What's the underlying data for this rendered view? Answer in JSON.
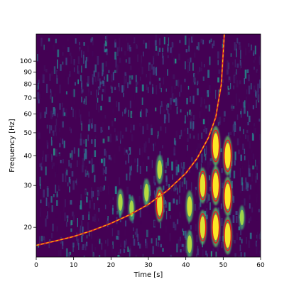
{
  "chart_data": {
    "type": "heatmap",
    "title": "",
    "xlabel": "Time [s]",
    "ylabel": "Frequency [Hz]",
    "xlim": [
      0,
      60
    ],
    "ylim": [
      15,
      130
    ],
    "yscale": "log",
    "colormap": "viridis",
    "grid": false,
    "x_ticks": [
      0,
      10,
      20,
      30,
      40,
      50,
      60
    ],
    "x_tick_labels": [
      "0",
      "10",
      "20",
      "30",
      "40",
      "50",
      "60"
    ],
    "y_ticks": [
      20,
      30,
      40,
      50,
      60,
      70,
      80,
      90,
      100
    ],
    "y_tick_labels": [
      "20",
      "30",
      "40",
      "50",
      "60",
      "70",
      "80",
      "90",
      "100"
    ],
    "chirp_curve": {
      "style": "dashed",
      "color_outer": "#d62728",
      "color_inner": "#ffd200",
      "x": [
        0,
        5,
        10,
        15,
        20,
        25,
        30,
        35,
        40,
        43,
        46,
        48,
        49.5,
        50.3
      ],
      "y": [
        16.8,
        17.5,
        18.3,
        19.4,
        20.8,
        22.6,
        25.0,
        28.5,
        33.8,
        39.0,
        47.5,
        58.0,
        80.0,
        130.0
      ]
    },
    "hotspots": [
      {
        "x": 22.5,
        "y": 25.5,
        "strength": 0.5
      },
      {
        "x": 25.5,
        "y": 24.0,
        "strength": 0.45
      },
      {
        "x": 29.5,
        "y": 28.0,
        "strength": 0.55
      },
      {
        "x": 33.0,
        "y": 25.0,
        "strength": 0.85
      },
      {
        "x": 33.0,
        "y": 35.0,
        "strength": 0.6
      },
      {
        "x": 41.0,
        "y": 24.5,
        "strength": 0.7
      },
      {
        "x": 41.0,
        "y": 17.0,
        "strength": 0.55
      },
      {
        "x": 44.5,
        "y": 30.0,
        "strength": 0.85
      },
      {
        "x": 44.5,
        "y": 20.0,
        "strength": 0.8
      },
      {
        "x": 48.0,
        "y": 44.0,
        "strength": 1.0
      },
      {
        "x": 48.0,
        "y": 30.0,
        "strength": 1.0
      },
      {
        "x": 48.0,
        "y": 20.0,
        "strength": 1.0
      },
      {
        "x": 51.2,
        "y": 40.0,
        "strength": 1.0
      },
      {
        "x": 51.2,
        "y": 27.0,
        "strength": 1.0
      },
      {
        "x": 51.2,
        "y": 18.5,
        "strength": 0.95
      },
      {
        "x": 55.0,
        "y": 22.0,
        "strength": 0.4
      }
    ]
  }
}
